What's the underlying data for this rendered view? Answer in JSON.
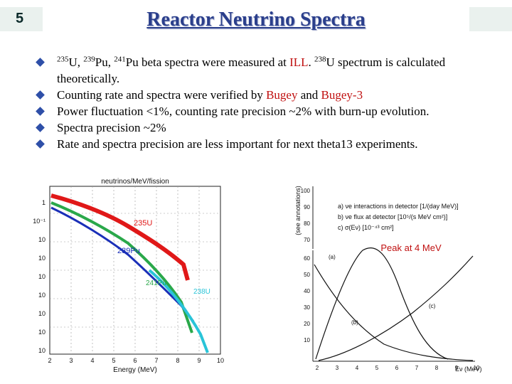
{
  "slide_number": "5",
  "title": "Reactor Neutrino Spectra",
  "bullets": [
    {
      "parts": {
        "iso1_mass": "235",
        "iso1_name": "U, ",
        "iso2_mass": "239",
        "iso2_name": "Pu, ",
        "iso3_mass": "241",
        "iso3_name": "Pu beta spectra were measured at ",
        "lab": "ILL",
        ". ": "",
        "iso4_mass": "238",
        "iso4_name": "U spectrum is calculated theoretically."
      }
    },
    {
      "text_a": "Counting rate and spectra were verified by ",
      "bugey": "Bugey",
      " and ": "",
      "bugey3": "Bugey-3"
    },
    {
      "text": "Power fluctuation <1%, counting rate precision ~2% with burn-up evolution."
    },
    {
      "text": "Spectra precision ~2%"
    },
    {
      "text": "Rate and spectra precision are less important for next theta13 experiments."
    }
  ],
  "b1_sep": ". ",
  "b2_and": " and ",
  "left_plot": {
    "header": "neutrinos/MeV/fission",
    "xlabel": "Energy (MeV)",
    "x_ticks": [
      "2",
      "3",
      "4",
      "5",
      "6",
      "7",
      "8",
      "9",
      "10"
    ],
    "y_ticks": [
      "1",
      "10⁻¹",
      "10",
      "10",
      "10",
      "10",
      "10",
      "10",
      "10"
    ],
    "label_u235": "235U",
    "label_pu239": "239Pu",
    "label_pu241": "241Pu",
    "label_u238": "238U",
    "colors": {
      "u235": "#e01818",
      "pu239": "#1a2fb8",
      "pu241": "#2aa84a",
      "u238": "#29c4d8"
    }
  },
  "right_plot": {
    "y_axis_title": "(see annotations)",
    "y_ticks_top": [
      "100",
      "90",
      "80",
      "70"
    ],
    "y_ticks_bottom": [
      "60",
      "50",
      "40",
      "30",
      "20",
      "10"
    ],
    "x_ticks": [
      "2",
      "3",
      "4",
      "5",
      "6",
      "7",
      "8",
      "9",
      "10"
    ],
    "xlabel": "Eν (MeV)",
    "legend": [
      "a) νe interactions in detector [1/(day MeV)]",
      "b) νe flux at detector [10⁵/(s MeV cm²)]",
      "c) σ(Eν) [10⁻⁴³ cm²]"
    ],
    "curve_labels": [
      "(a)",
      "(b)",
      "(c)"
    ],
    "peak_annotation": "Peak at 4 MeV",
    "peak_color": "#c01010"
  }
}
